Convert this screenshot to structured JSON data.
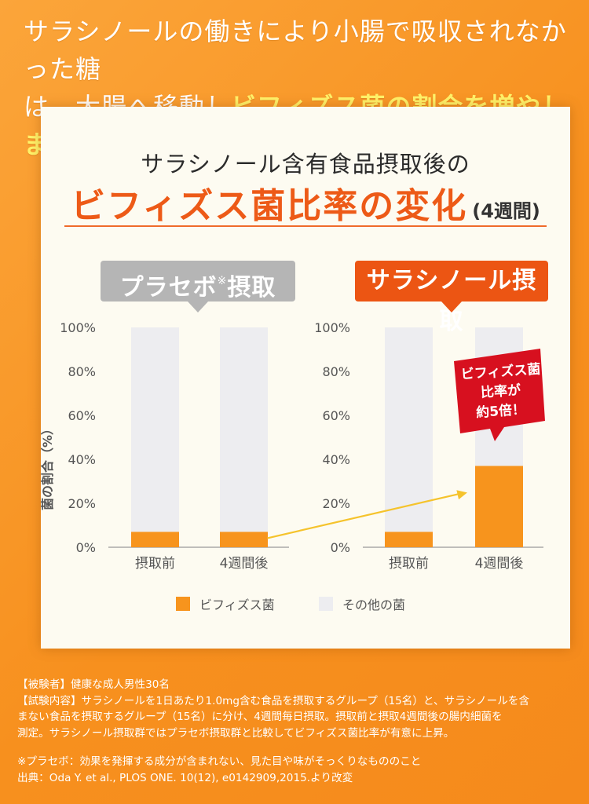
{
  "headline": {
    "line1": "サラシノールの働きにより小腸で吸収されなかった糖",
    "line2_prefix": "は、大腸へ移動し",
    "line2_highlight": "ビフィズス菌の割合を増やします！"
  },
  "card": {
    "title": "サラシノール含有食品摂取後の",
    "subtitle": "ビフィズス菌比率の変化",
    "subtitle_suffix": "(4週間)",
    "placebo_label": "プラセボ",
    "placebo_mark": "※",
    "placebo_label_suffix": "摂取",
    "sara_label": "サラシノール摂取"
  },
  "chart_data": {
    "type": "bar",
    "stacked": true,
    "ylabel": "菌の割合（%）",
    "ylim": [
      0,
      100
    ],
    "yticks": [
      "0%",
      "20%",
      "40%",
      "60%",
      "80%",
      "100%"
    ],
    "groups": [
      {
        "name": "プラセボ※摂取",
        "categories": [
          "摂取前",
          "4週間後"
        ],
        "bifido": [
          7,
          7
        ],
        "other": [
          93,
          93
        ]
      },
      {
        "name": "サラシノール摂取",
        "categories": [
          "摂取前",
          "4週間後"
        ],
        "bifido": [
          7,
          37
        ],
        "other": [
          93,
          63
        ]
      }
    ],
    "legend": [
      {
        "label": "ビフィズス菌",
        "color": "#f7941d"
      },
      {
        "label": "その他の菌",
        "color": "#ededf0"
      }
    ],
    "callout": [
      "ビフィズス菌",
      "比率が",
      "約5倍！"
    ],
    "colors": {
      "bifido": "#f7941d",
      "other": "#ededf0",
      "callout": "#d7101f",
      "arrow": "#f5c32c",
      "axis": "#9a9a9a",
      "text": "#555555"
    }
  },
  "footnotes": {
    "subjects": "【被験者】健康な成人男性30名",
    "content_1": "【試験内容】サラシノールを1日あたり1.0mg含む食品を摂取するグループ（15名）と、サラシノールを含",
    "content_2": "まない食品を摂取するグループ（15名）に分け、4週間毎日摂取。摂取前と摂取4週間後の腸内細菌を",
    "content_3": "測定。サラシノール摂取群ではプラセボ摂取群と比較してビフィズス菌比率が有意に上昇。",
    "placebo_note": "※プラセボ：効果を発揮する成分が含まれない、見た目や味がそっくりなもののこと",
    "source": "出典：Oda Y. et al., PLOS ONE. 10(12), e0142909,2015.より改変"
  }
}
